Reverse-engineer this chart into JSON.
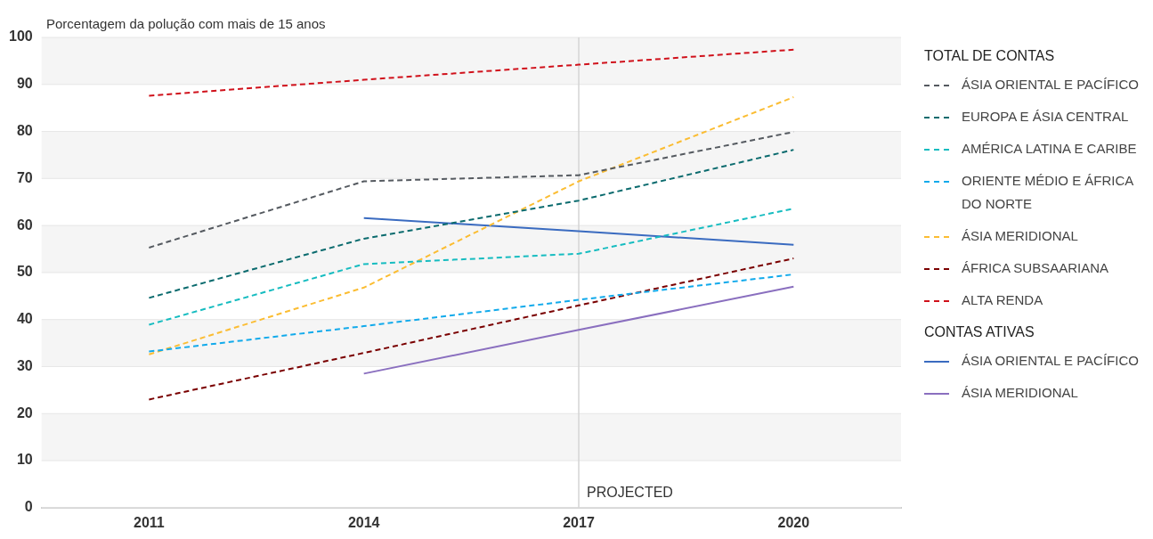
{
  "chart_data": {
    "type": "line",
    "ylabel": "Porcentagem da polução com mais de 15 anos",
    "legend_title": "TOTAL DE CONTAS",
    "annotations": [
      "CONTAS ATIVAS"
    ],
    "categories": [
      "2011",
      "2014",
      "2017",
      "2020"
    ],
    "ylim": [
      0,
      100
    ],
    "yticks": [
      0,
      10,
      20,
      30,
      40,
      50,
      60,
      70,
      80,
      90,
      100
    ],
    "grid": "y",
    "legend": "right",
    "ref_lines": [
      {
        "axis": "x",
        "value": "2017",
        "label": "PROJECTED",
        "color": "#d4d4d4"
      }
    ],
    "series": [
      {
        "name": "ÁSIA ORIENTAL E PACÍFICO",
        "color": "#555a60",
        "line_style": "dashed",
        "values": [
          55.3,
          69.4,
          70.7,
          79.9
        ]
      },
      {
        "name": "EUROPA E ÁSIA CENTRAL",
        "color": "#0b6b6e",
        "line_style": "dashed",
        "values": [
          44.6,
          57.2,
          65.3,
          76.1
        ]
      },
      {
        "name": "AMÉRICA LATINA E CARIBE",
        "color": "#16bcc0",
        "line_style": "dashed",
        "values": [
          38.9,
          51.8,
          54,
          63.6
        ]
      },
      {
        "name": "ORIENTE MÉDIO E ÁFRICA DO NORTE",
        "color": "#12aaeb",
        "line_style": "dashed",
        "values": [
          33.2,
          38.6,
          44.2,
          49.6
        ]
      },
      {
        "name": "ÁSIA MERIDIONAL",
        "color": "#fbbd33",
        "line_style": "dashed",
        "values": [
          32.6,
          46.8,
          69.4,
          87.3
        ]
      },
      {
        "name": "ÁFRICA SUBSAARIANA",
        "color": "#7a0000",
        "line_style": "dashed",
        "values": [
          23,
          32.9,
          43,
          53
        ]
      },
      {
        "name": "ALTA RENDA",
        "color": "#d0111b",
        "line_style": "dashed",
        "values": [
          87.6,
          91,
          94.2,
          97.4
        ]
      },
      {
        "name": "ÁSIA ORIENTAL E PACÍFICO",
        "color": "#3a6bc0",
        "line_style": "solid",
        "values": [
          null,
          61.6,
          58.8,
          55.9
        ]
      },
      {
        "name": "ÁSIA MERIDIONAL",
        "color": "#8a6fbf",
        "line_style": "solid",
        "values": [
          null,
          28.5,
          37.8,
          47
        ]
      }
    ]
  }
}
